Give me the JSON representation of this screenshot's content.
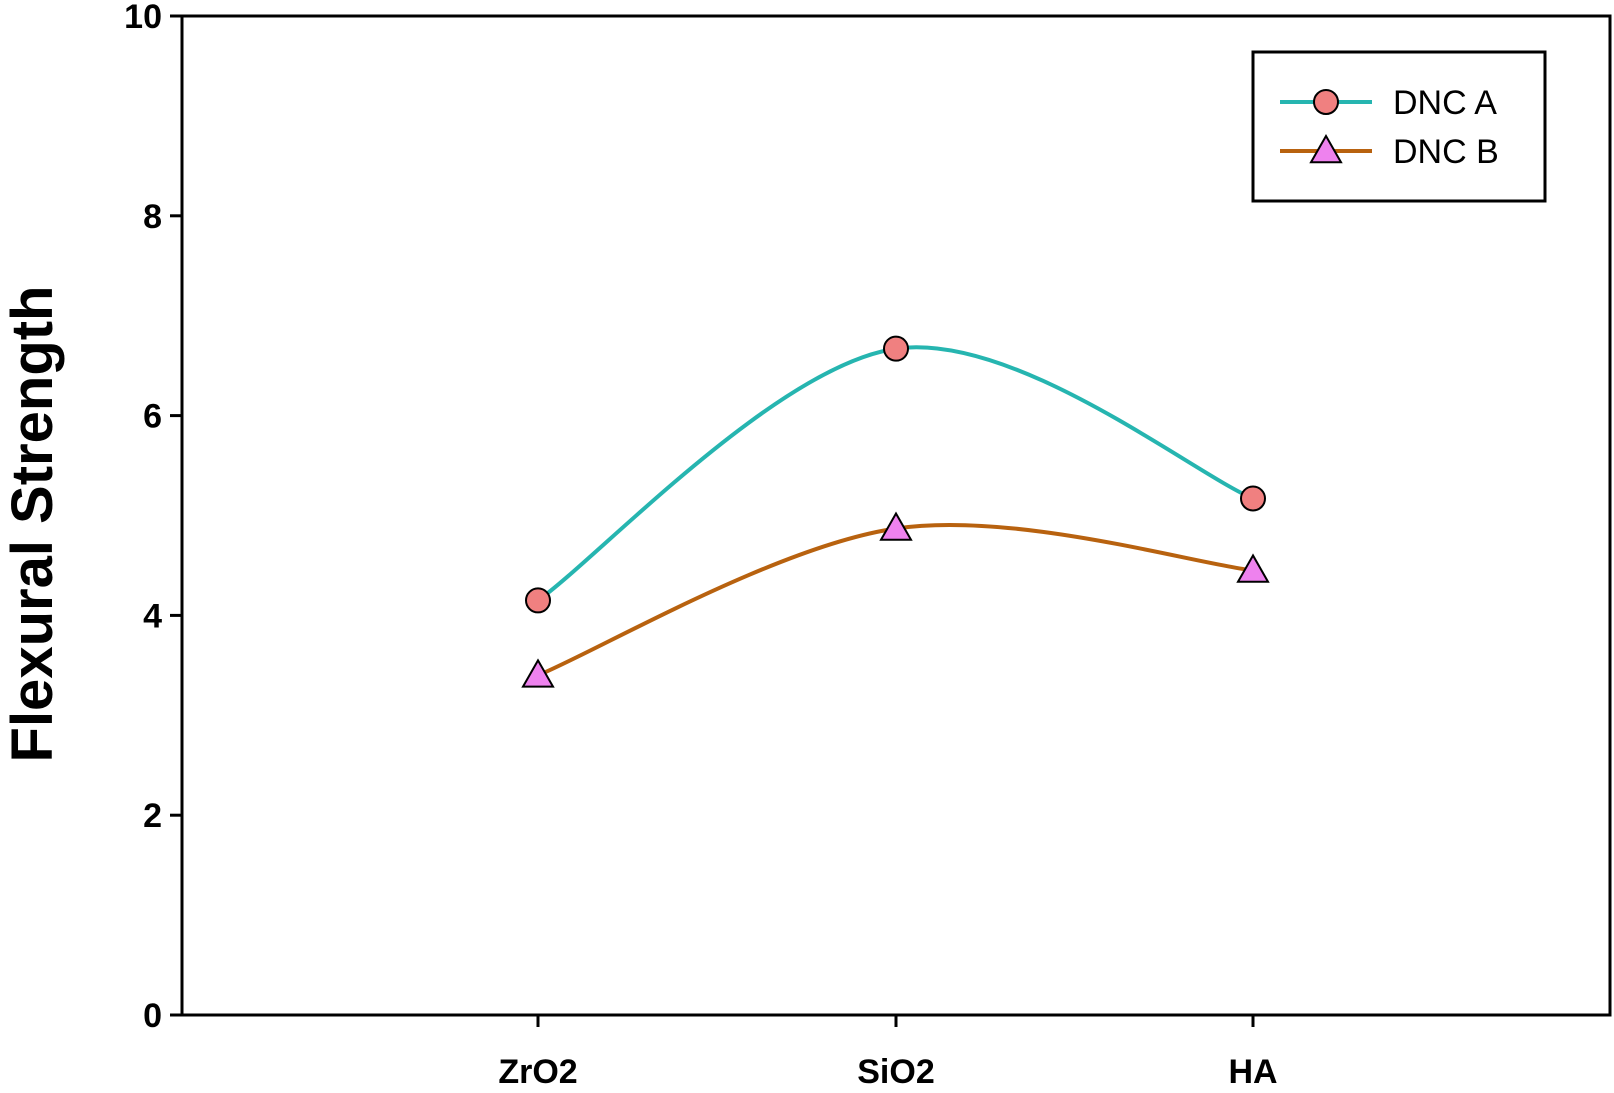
{
  "chart_data": {
    "type": "line",
    "title": "",
    "xlabel": "",
    "ylabel": "Flexural Strength",
    "categories": [
      "ZrO2",
      "SiO2",
      "HA"
    ],
    "ylim": [
      0,
      10
    ],
    "yticks": [
      0,
      2,
      4,
      6,
      8,
      10
    ],
    "grid": false,
    "smooth": true,
    "legend_position": "top-right",
    "series": [
      {
        "name": "DNC A",
        "values": [
          4.15,
          6.67,
          5.17
        ],
        "line_color": "#26b5b0",
        "marker": "circle",
        "marker_color": "#f08080"
      },
      {
        "name": "DNC B",
        "values": [
          3.4,
          4.87,
          4.45
        ],
        "line_color": "#b8620f",
        "marker": "triangle",
        "marker_color": "#ee82ee"
      }
    ]
  }
}
